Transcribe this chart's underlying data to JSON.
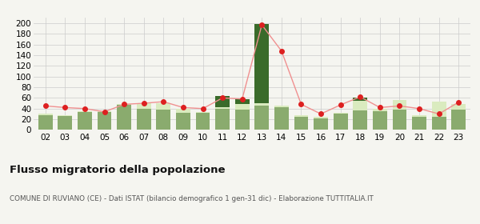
{
  "years": [
    "02",
    "03",
    "04",
    "05",
    "06",
    "07",
    "08",
    "09",
    "10",
    "11",
    "12",
    "13",
    "14",
    "15",
    "16",
    "17",
    "18",
    "19",
    "20",
    "21",
    "22",
    "23"
  ],
  "iscritti_altri_comuni": [
    28,
    26,
    33,
    33,
    47,
    40,
    38,
    32,
    32,
    40,
    38,
    45,
    43,
    25,
    22,
    30,
    36,
    35,
    38,
    25,
    25,
    38
  ],
  "iscritti_estero": [
    2,
    2,
    2,
    2,
    2,
    10,
    12,
    7,
    2,
    3,
    10,
    5,
    2,
    2,
    2,
    2,
    18,
    5,
    18,
    2,
    28,
    10
  ],
  "iscritti_altri": [
    0,
    0,
    0,
    0,
    0,
    0,
    0,
    0,
    0,
    20,
    10,
    148,
    0,
    0,
    0,
    0,
    6,
    0,
    0,
    0,
    0,
    0
  ],
  "cancellati": [
    45,
    42,
    40,
    34,
    48,
    50,
    53,
    42,
    40,
    60,
    58,
    197,
    148,
    48,
    30,
    47,
    62,
    42,
    45,
    40,
    30,
    52
  ],
  "color_altri_comuni": "#8aab6e",
  "color_estero": "#daebbf",
  "color_altri": "#3a6b2a",
  "color_cancellati_dot": "#dd2020",
  "color_cancellati_line": "#f09090",
  "bg_color": "#f5f5f0",
  "grid_color": "#cccccc",
  "title": "Flusso migratorio della popolazione",
  "subtitle": "COMUNE DI RUVIANO (CE) - Dati ISTAT (bilancio demografico 1 gen-31 dic) - Elaborazione TUTTITALIA.IT",
  "ylim": [
    0,
    210
  ],
  "yticks": [
    0,
    20,
    40,
    60,
    80,
    100,
    120,
    140,
    160,
    180,
    200
  ]
}
